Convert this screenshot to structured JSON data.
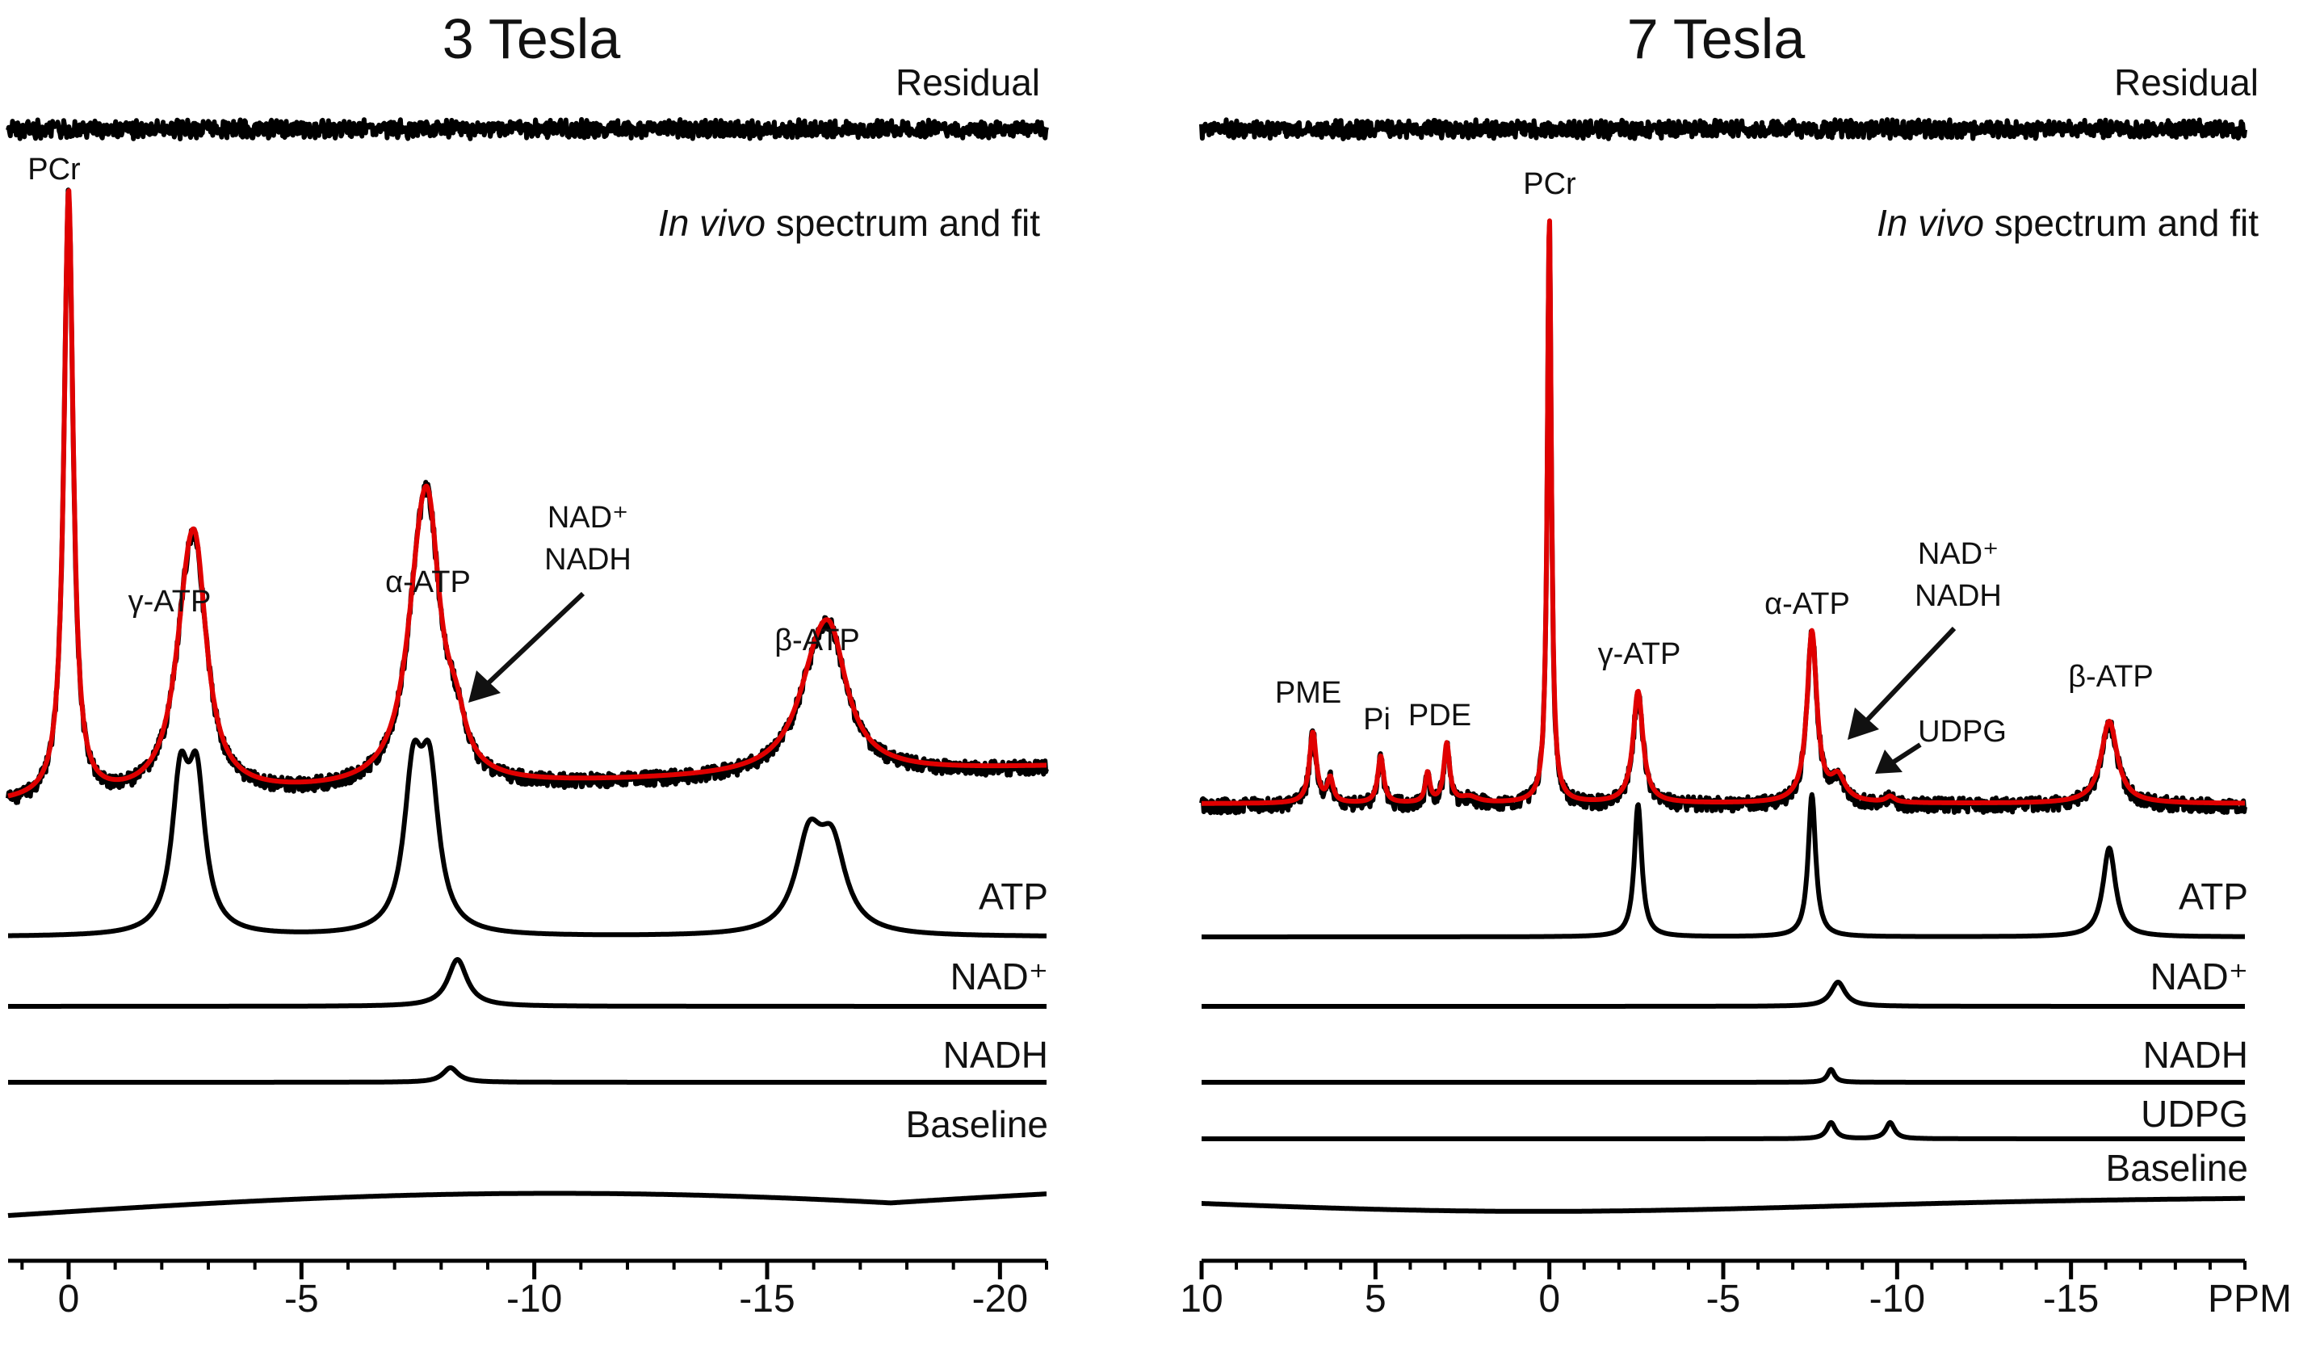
{
  "chart_data": [
    {
      "type": "line",
      "title": "3 Tesla",
      "xlabel": "",
      "xlim": [
        1.3,
        -21
      ],
      "xticks": [
        0,
        -5,
        -10,
        -15,
        -20
      ],
      "xtick_labels": [
        "0",
        "-5",
        "-10",
        "-15",
        "-20"
      ],
      "residual_label": "Residual",
      "spectrum_label_italic": "In vivo",
      "spectrum_label_rest": " spectrum and fit",
      "peaks": [
        {
          "name": "PCr",
          "label": "PCr",
          "ppm": 0.0,
          "height": 1.0,
          "width": 0.12
        },
        {
          "name": "gamma-ATP",
          "label": "γ-ATP",
          "ppm": -2.55,
          "height": 0.24,
          "width": 0.35
        },
        {
          "name": "alpha-ATP",
          "label": "α-ATP",
          "ppm": -7.55,
          "height": 0.27,
          "width": 0.38
        },
        {
          "name": "beta-ATP",
          "label": "β-ATP",
          "ppm": -16.1,
          "height": 0.16,
          "width": 0.55
        }
      ],
      "nad_annotation": [
        "NAD⁺",
        "NADH"
      ],
      "components": [
        {
          "name": "ATP",
          "label": "ATP",
          "peaks": [
            [
              -2.4,
              0.88,
              0.22
            ],
            [
              -2.75,
              0.88,
              0.22
            ],
            [
              -7.4,
              0.9,
              0.24
            ],
            [
              -7.75,
              0.9,
              0.24
            ],
            [
              -15.9,
              0.55,
              0.35
            ],
            [
              -16.4,
              0.5,
              0.35
            ]
          ]
        },
        {
          "name": "NAD+",
          "label": "NAD⁺",
          "peaks": [
            [
              -8.35,
              1.0,
              0.25
            ]
          ]
        },
        {
          "name": "NADH",
          "label": "NADH",
          "peaks": [
            [
              -8.2,
              1.0,
              0.2
            ]
          ]
        },
        {
          "name": "Baseline",
          "label": "Baseline",
          "shape": "broad"
        }
      ]
    },
    {
      "type": "line",
      "title": "7 Tesla",
      "xlabel": "PPM",
      "xlim": [
        10,
        -20
      ],
      "xticks": [
        10,
        5,
        0,
        -5,
        -10,
        -15
      ],
      "xtick_labels": [
        "10",
        "5",
        "0",
        "-5",
        "-10",
        "-15"
      ],
      "residual_label": "Residual",
      "spectrum_label_italic": "In vivo",
      "spectrum_label_rest": " spectrum and fit",
      "peaks": [
        {
          "name": "PME",
          "label": "PME",
          "ppm": 6.8,
          "height": 0.12,
          "width": 0.12
        },
        {
          "name": "Pi",
          "label": "Pi",
          "ppm": 4.85,
          "height": 0.08,
          "width": 0.1
        },
        {
          "name": "PDE",
          "label": "PDE",
          "ppm": 2.95,
          "height": 0.1,
          "width": 0.1
        },
        {
          "name": "PCr",
          "label": "PCr",
          "ppm": 0.0,
          "height": 1.0,
          "width": 0.07
        },
        {
          "name": "gamma-ATP",
          "label": "γ-ATP",
          "ppm": -2.55,
          "height": 0.19,
          "width": 0.17
        },
        {
          "name": "alpha-ATP",
          "label": "α-ATP",
          "ppm": -7.55,
          "height": 0.29,
          "width": 0.17
        },
        {
          "name": "beta-ATP",
          "label": "β-ATP",
          "ppm": -16.1,
          "height": 0.14,
          "width": 0.28
        }
      ],
      "nad_annotation": [
        "NAD⁺",
        "NADH"
      ],
      "udpg_annotation": "UDPG",
      "components": [
        {
          "name": "ATP",
          "label": "ATP",
          "peaks": [
            [
              -2.55,
              0.82,
              0.13
            ],
            [
              -7.55,
              0.88,
              0.13
            ],
            [
              -16.1,
              0.55,
              0.22
            ]
          ]
        },
        {
          "name": "NAD+",
          "label": "NAD⁺",
          "peaks": [
            [
              -8.3,
              1.0,
              0.25
            ]
          ]
        },
        {
          "name": "NADH",
          "label": "NADH",
          "peaks": [
            [
              -8.1,
              1.0,
              0.12
            ]
          ]
        },
        {
          "name": "UDPG",
          "label": "UDPG",
          "peaks": [
            [
              -8.1,
              1.0,
              0.15
            ],
            [
              -9.8,
              1.0,
              0.15
            ]
          ]
        },
        {
          "name": "Baseline",
          "label": "Baseline",
          "shape": "broad-dip"
        }
      ]
    }
  ]
}
